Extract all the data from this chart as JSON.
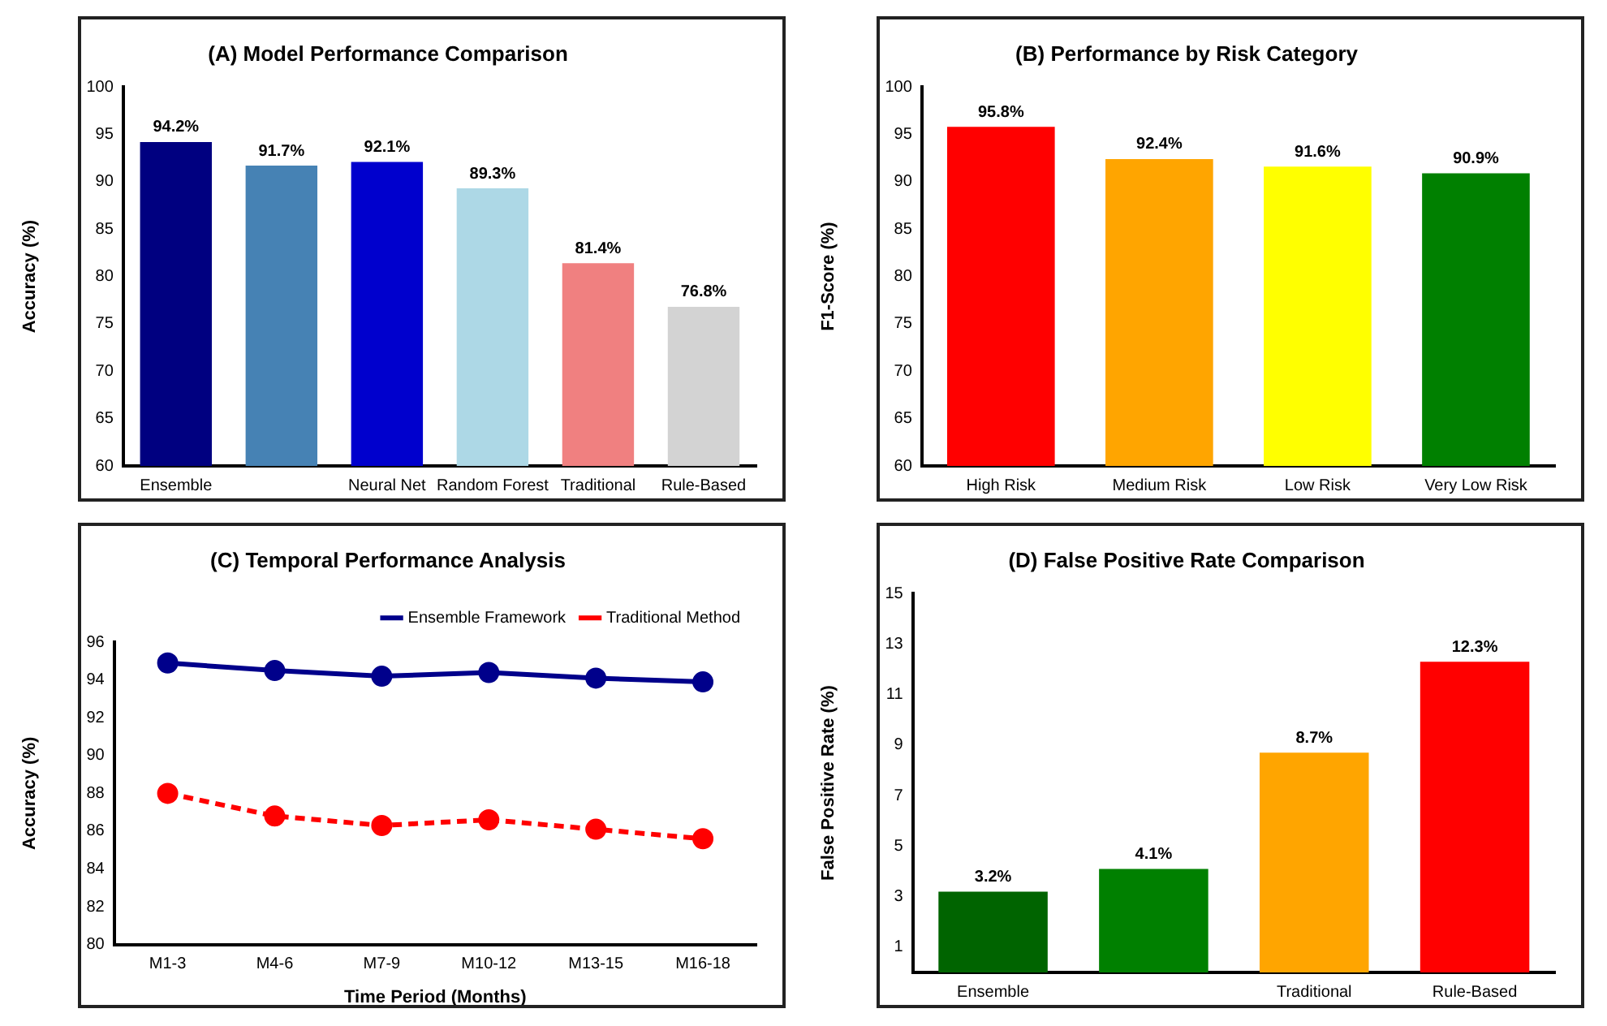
{
  "chart_data": [
    {
      "type": "bar",
      "title": "(A) Model Performance Comparison",
      "ylabel": "Accuracy (%)",
      "categories": [
        "Ensemble",
        null,
        "Neural Net",
        "Random Forest",
        "Traditional",
        "Rule-Based"
      ],
      "values": [
        94.2,
        91.7,
        92.1,
        89.3,
        81.4,
        76.8
      ],
      "colors": [
        "#000080",
        "#4682b4",
        "#0000cd",
        "#add8e6",
        "#f08080",
        "#d3d3d3"
      ],
      "value_labels": [
        "94.2%",
        "91.7%",
        "92.1%",
        "89.3%",
        "81.4%",
        "76.8%"
      ],
      "ylim": [
        60,
        100
      ],
      "yticks": [
        60,
        65,
        70,
        75,
        80,
        85,
        90,
        95,
        100
      ],
      "grid": false
    },
    {
      "type": "bar",
      "title": "(B) Performance by Risk Category",
      "ylabel": "F1-Score (%)",
      "categories": [
        "High Risk",
        "Medium Risk",
        "Low Risk",
        "Very Low Risk"
      ],
      "values": [
        95.8,
        92.4,
        91.6,
        90.9
      ],
      "colors": [
        "#ff0000",
        "#ffa500",
        "#ffff00",
        "#008000"
      ],
      "value_labels": [
        "95.8%",
        "92.4%",
        "91.6%",
        "90.9%"
      ],
      "ylim": [
        60,
        100
      ],
      "yticks": [
        60,
        65,
        70,
        75,
        80,
        85,
        90,
        95,
        100
      ],
      "grid": false
    },
    {
      "type": "line",
      "title": "(C) Temporal Performance Analysis",
      "ylabel": "Accuracy (%)",
      "xlabel": "Time Period (Months)",
      "categories": [
        "M1-3",
        "M4-6",
        "M7-9",
        "M10-12",
        "M13-15",
        "M16-18"
      ],
      "series": [
        {
          "name": "Ensemble Framework",
          "color": "#00008b",
          "line_style": "solid",
          "values": [
            94.9,
            94.5,
            94.2,
            94.4,
            94.1,
            93.9
          ]
        },
        {
          "name": "Traditional Method",
          "color": "#ff0000",
          "line_style": "dashed",
          "values": [
            88.0,
            86.8,
            86.3,
            86.6,
            86.1,
            85.6
          ]
        }
      ],
      "marker": "circle",
      "ylim": [
        80,
        96
      ],
      "yticks": [
        80,
        82,
        84,
        86,
        88,
        90,
        92,
        94,
        96
      ],
      "legend": "top right",
      "grid": false
    },
    {
      "type": "bar",
      "title": "(D) False Positive Rate Comparison",
      "ylabel": "False Positive Rate (%)",
      "categories": [
        "Ensemble",
        null,
        "Traditional",
        "Rule-Based"
      ],
      "values": [
        3.2,
        4.1,
        8.7,
        12.3
      ],
      "colors": [
        "#006400",
        "#008000",
        "#ffa500",
        "#ff0000"
      ],
      "value_labels": [
        "3.2%",
        "4.1%",
        "8.7%",
        "12.3%"
      ],
      "ylim": [
        0,
        15
      ],
      "yticks": [
        1,
        3,
        5,
        7,
        9,
        11,
        13,
        15
      ],
      "grid": false
    }
  ]
}
